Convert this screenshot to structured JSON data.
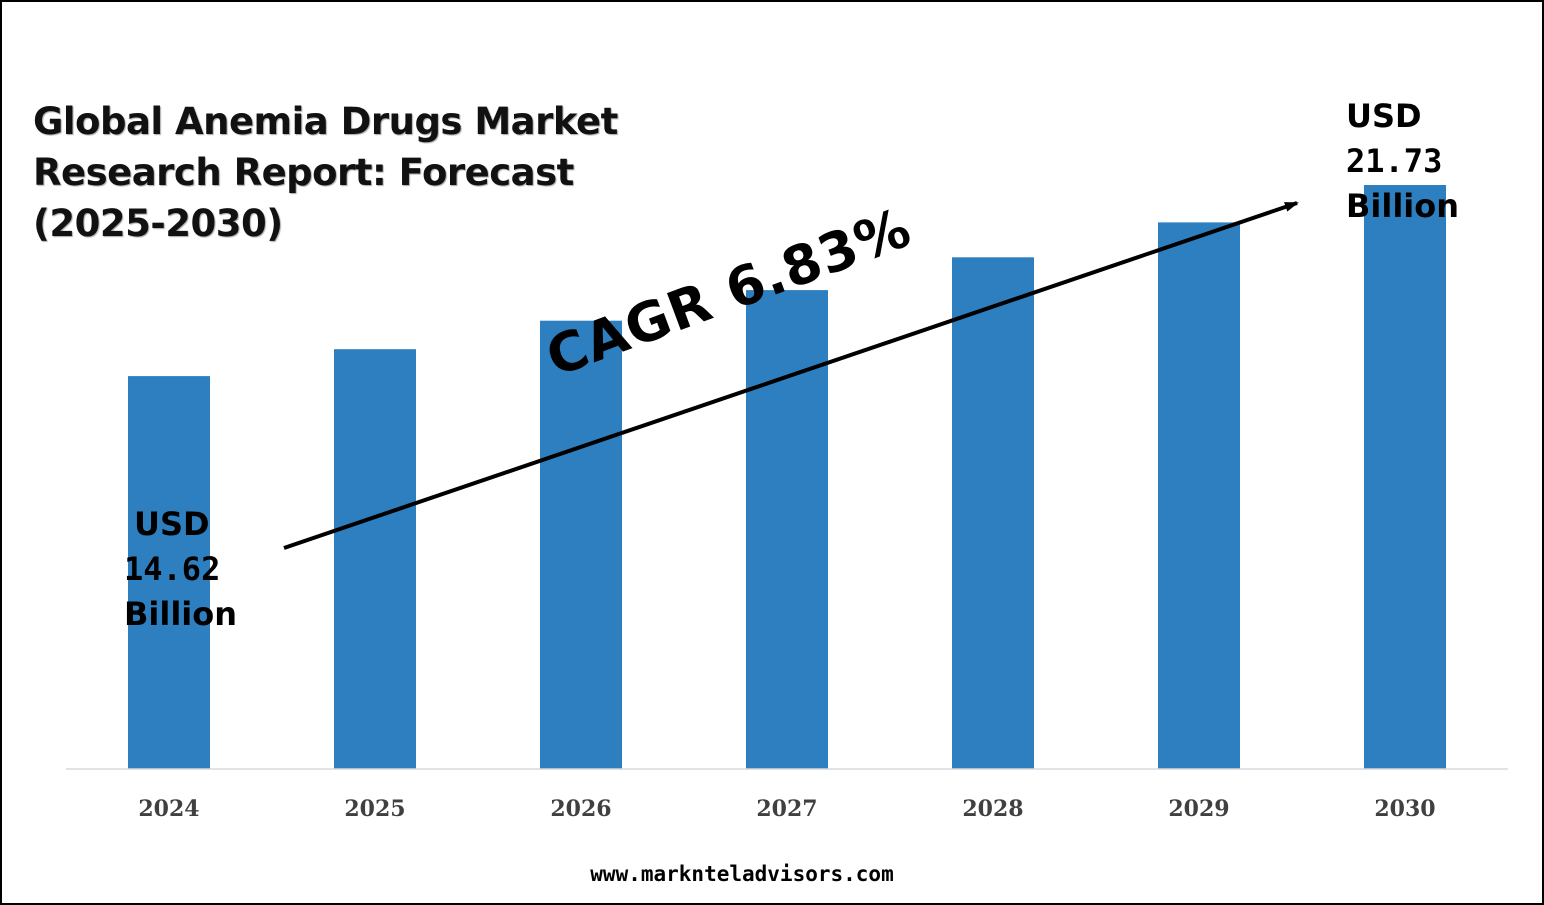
{
  "chart_data": {
    "type": "bar",
    "title_lines": [
      "Global Anemia Drugs Market",
      "Research Report: Forecast",
      "(2025-2030)"
    ],
    "categories": [
      "2024",
      "2025",
      "2026",
      "2027",
      "2028",
      "2029",
      "2030"
    ],
    "values": [
      14.62,
      15.62,
      16.68,
      17.82,
      19.04,
      20.34,
      21.73
    ],
    "bar_color": "#2e7fc0",
    "ylim": [
      0,
      24
    ],
    "grid": false,
    "annotations": {
      "cagr": "CAGR 6.83%",
      "start": {
        "currency": "USD",
        "value": "14.62",
        "unit": "Billion"
      },
      "end": {
        "currency": "USD",
        "value": "21.73",
        "unit": "Billion"
      }
    }
  },
  "footer": {
    "website": "www.marknteladvisors.com"
  }
}
